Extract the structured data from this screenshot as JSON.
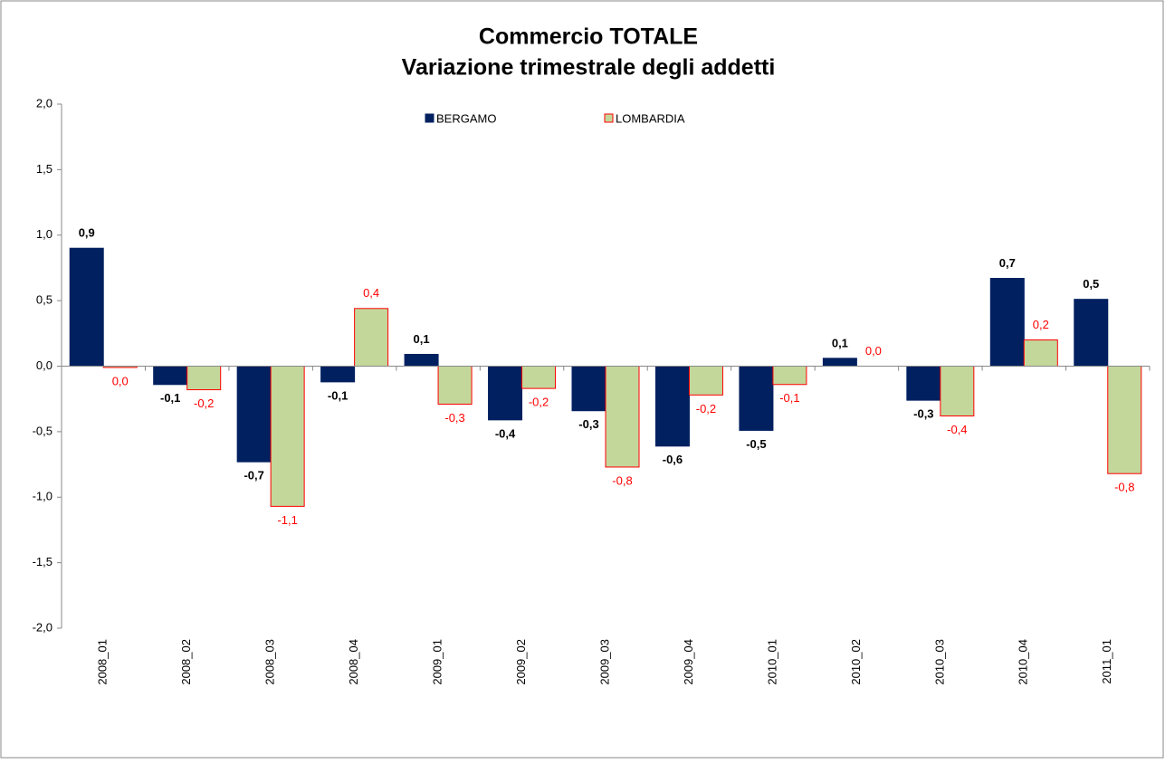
{
  "chart_data": {
    "type": "bar",
    "title": "Commercio TOTALE",
    "subtitle": "Variazione trimestrale  degli addetti",
    "categories": [
      "2008_01",
      "2008_02",
      "2008_03",
      "2008_04",
      "2009_01",
      "2009_02",
      "2009_03",
      "2009_04",
      "2010_01",
      "2010_02",
      "2010_03",
      "2010_04",
      "2011_01"
    ],
    "series": [
      {
        "name": "BERGAMO",
        "color": "#002060",
        "edgecolor": "#002060",
        "label_color": "#000000",
        "values": [
          0.9,
          -0.14,
          -0.73,
          -0.12,
          0.09,
          -0.41,
          -0.34,
          -0.61,
          -0.49,
          0.06,
          -0.26,
          0.67,
          0.51
        ],
        "value_labels": [
          "0,9",
          "-0,1",
          "-0,7",
          "-0,1",
          "0,1",
          "-0,4",
          "-0,3",
          "-0,6",
          "-0,5",
          "0,1",
          "-0,3",
          "0,7",
          "0,5"
        ]
      },
      {
        "name": "LOMBARDIA",
        "color": "#c4d79b",
        "edgecolor": "#ff0000",
        "label_color": "#ff0000",
        "values": [
          -0.01,
          -0.18,
          -1.07,
          0.44,
          -0.29,
          -0.17,
          -0.77,
          -0.22,
          -0.14,
          0,
          -0.38,
          0.2,
          -0.82
        ],
        "value_labels": [
          "0,0",
          "-0,2",
          "-1,1",
          "0,4",
          "-0,3",
          "-0,2",
          "-0,8",
          "-0,2",
          "-0,1",
          "0,0",
          "-0,4",
          "0,2",
          "-0,8"
        ]
      }
    ],
    "ylim": [
      -2,
      2
    ],
    "yticks": [
      {
        "value": -2,
        "label": "-2,0"
      },
      {
        "value": -1.5,
        "label": "-1,5"
      },
      {
        "value": -1,
        "label": "-1,0"
      },
      {
        "value": -0.5,
        "label": "-0,5"
      },
      {
        "value": 0,
        "label": "0,0"
      },
      {
        "value": 0.5,
        "label": "0,5"
      },
      {
        "value": 1,
        "label": "1,0"
      },
      {
        "value": 1.5,
        "label": "1,5"
      },
      {
        "value": 2,
        "label": "2,0"
      }
    ],
    "grid": false,
    "legend": "top"
  }
}
